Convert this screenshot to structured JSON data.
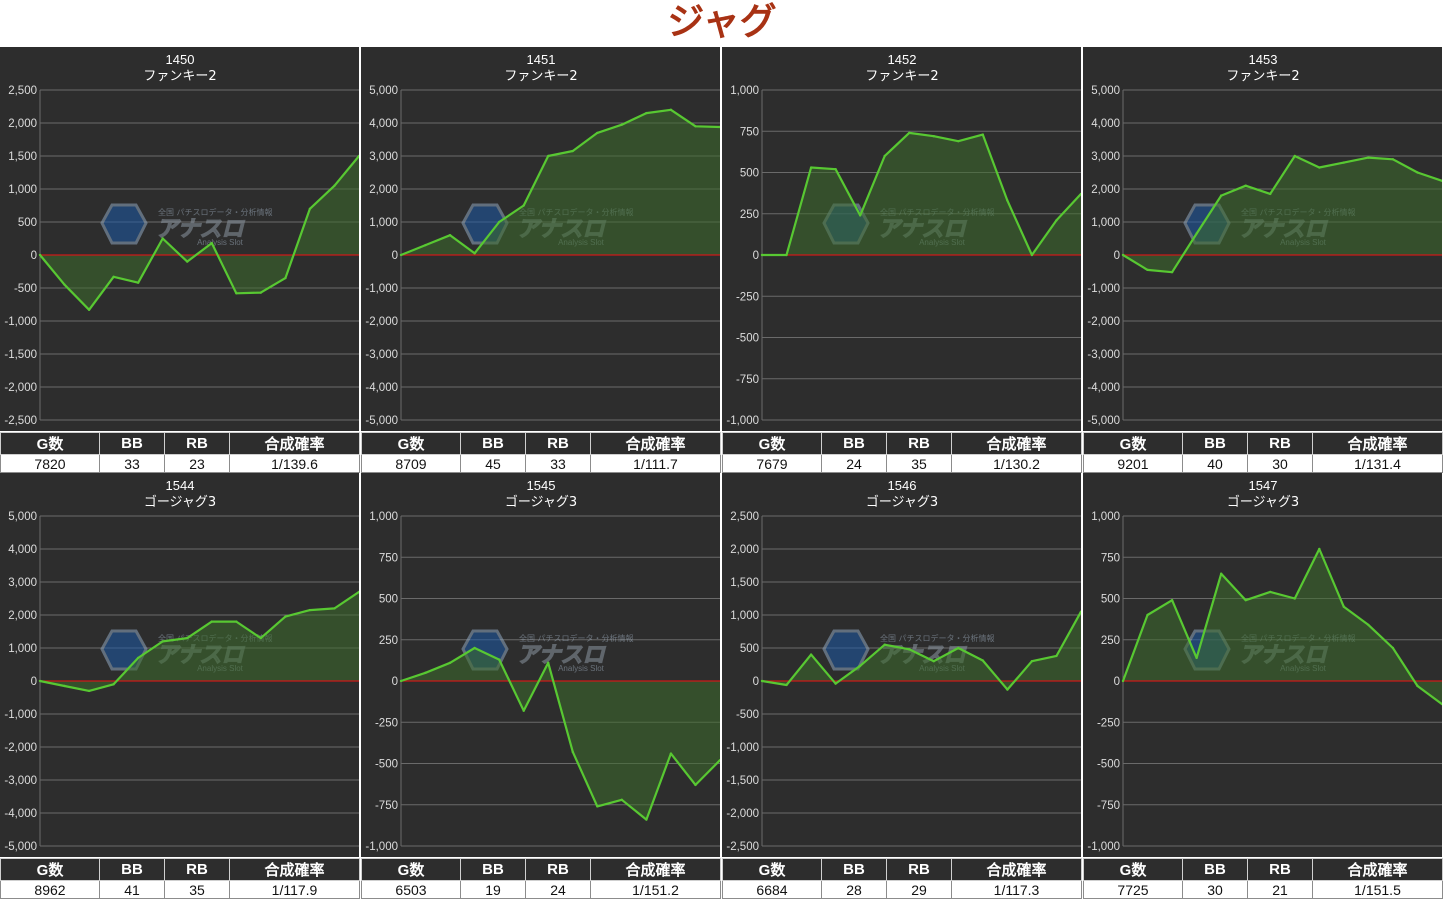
{
  "page": {
    "title": "ジャグ"
  },
  "table_headers": [
    "G数",
    "BB",
    "RB",
    "合成確率"
  ],
  "watermark": {
    "icon": "analysis-slot-logo",
    "subtext": "全国 パチスロデータ・分析情報",
    "logo": "アナスロ",
    "tagline": "Analysis Slot"
  },
  "colors": {
    "page_title": "#a83214",
    "panel_bg": "#2d2d2d",
    "line": "#58c832",
    "area": "#3d6b2c",
    "zero_line": "#cc1a1a",
    "grid": "#6a6a6a"
  },
  "panels": [
    {
      "machine": "1450",
      "model": "ファンキー2",
      "stats": {
        "games": "7820",
        "bb": "33",
        "rb": "23",
        "rate": "1/139.6"
      }
    },
    {
      "machine": "1451",
      "model": "ファンキー2",
      "stats": {
        "games": "8709",
        "bb": "45",
        "rb": "33",
        "rate": "1/111.7"
      }
    },
    {
      "machine": "1452",
      "model": "ファンキー2",
      "stats": {
        "games": "7679",
        "bb": "24",
        "rb": "35",
        "rate": "1/130.2"
      }
    },
    {
      "machine": "1453",
      "model": "ファンキー2",
      "stats": {
        "games": "9201",
        "bb": "40",
        "rb": "30",
        "rate": "1/131.4"
      }
    },
    {
      "machine": "1544",
      "model": "ゴージャグ3",
      "stats": {
        "games": "8962",
        "bb": "41",
        "rb": "35",
        "rate": "1/117.9"
      }
    },
    {
      "machine": "1545",
      "model": "ゴージャグ3",
      "stats": {
        "games": "6503",
        "bb": "19",
        "rb": "24",
        "rate": "1/151.2"
      }
    },
    {
      "machine": "1546",
      "model": "ゴージャグ3",
      "stats": {
        "games": "6684",
        "bb": "28",
        "rb": "29",
        "rate": "1/117.3"
      }
    },
    {
      "machine": "1547",
      "model": "ゴージャグ3",
      "stats": {
        "games": "7725",
        "bb": "30",
        "rb": "21",
        "rate": "1/151.5"
      }
    }
  ],
  "chart_data": [
    {
      "type": "area",
      "title": "1450",
      "subtitle": "ファンキー2",
      "ylim": [
        -2500,
        2500
      ],
      "yticks": [
        "2,500",
        "2,000",
        "1,500",
        "1,000",
        "500",
        "0",
        "-500",
        "-1,000",
        "-1,500",
        "-2,000",
        "-2,500"
      ],
      "values": [
        0,
        -450,
        -830,
        -330,
        -420,
        250,
        -100,
        180,
        -580,
        -570,
        -350,
        700,
        1050,
        1500
      ]
    },
    {
      "type": "area",
      "title": "1451",
      "subtitle": "ファンキー2",
      "ylim": [
        -5000,
        5000
      ],
      "yticks": [
        "5,000",
        "4,000",
        "3,000",
        "2,000",
        "1,000",
        "0",
        "-1,000",
        "-2,000",
        "-3,000",
        "-4,000",
        "-5,000"
      ],
      "values": [
        0,
        300,
        600,
        50,
        1000,
        1500,
        3000,
        3150,
        3700,
        3950,
        4300,
        4400,
        3900,
        3880
      ]
    },
    {
      "type": "area",
      "title": "1452",
      "subtitle": "ファンキー2",
      "ylim": [
        -1000,
        1000
      ],
      "yticks": [
        "1,000",
        "750",
        "500",
        "250",
        "0",
        "-250",
        "-500",
        "-750",
        "-1,000"
      ],
      "values": [
        0,
        0,
        530,
        520,
        240,
        600,
        740,
        720,
        690,
        730,
        330,
        0,
        210,
        370
      ]
    },
    {
      "type": "area",
      "title": "1453",
      "subtitle": "ファンキー2",
      "ylim": [
        -5000,
        5000
      ],
      "yticks": [
        "5,000",
        "4,000",
        "3,000",
        "2,000",
        "1,000",
        "0",
        "-1,000",
        "-2,000",
        "-3,000",
        "-4,000",
        "-5,000"
      ],
      "values": [
        0,
        -450,
        -520,
        650,
        1800,
        2100,
        1850,
        3000,
        2650,
        2800,
        2950,
        2900,
        2500,
        2250
      ]
    },
    {
      "type": "area",
      "title": "1544",
      "subtitle": "ゴージャグ3",
      "ylim": [
        -5000,
        5000
      ],
      "yticks": [
        "5,000",
        "4,000",
        "3,000",
        "2,000",
        "1,000",
        "0",
        "-1,000",
        "-2,000",
        "-3,000",
        "-4,000",
        "-5,000"
      ],
      "values": [
        0,
        -150,
        -300,
        -100,
        700,
        1200,
        1300,
        1800,
        1800,
        1300,
        1950,
        2150,
        2200,
        2700
      ]
    },
    {
      "type": "area",
      "title": "1545",
      "subtitle": "ゴージャグ3",
      "ylim": [
        -1000,
        1000
      ],
      "yticks": [
        "1,000",
        "750",
        "500",
        "250",
        "0",
        "-250",
        "-500",
        "-750",
        "-1,000"
      ],
      "values": [
        0,
        50,
        110,
        200,
        130,
        -180,
        110,
        -430,
        -760,
        -720,
        -840,
        -440,
        -630,
        -480
      ]
    },
    {
      "type": "area",
      "title": "1546",
      "subtitle": "ゴージャグ3",
      "ylim": [
        -2500,
        2500
      ],
      "yticks": [
        "2,500",
        "2,000",
        "1,500",
        "1,000",
        "500",
        "0",
        "-500",
        "-1,000",
        "-1,500",
        "-2,000",
        "-2,500"
      ],
      "values": [
        0,
        -60,
        400,
        -40,
        230,
        550,
        480,
        300,
        500,
        310,
        -130,
        300,
        380,
        1050
      ]
    },
    {
      "type": "area",
      "title": "1547",
      "subtitle": "ゴージャグ3",
      "ylim": [
        -1000,
        1000
      ],
      "yticks": [
        "1,000",
        "750",
        "500",
        "250",
        "0",
        "-250",
        "-500",
        "-750",
        "-1,000"
      ],
      "values": [
        0,
        400,
        490,
        140,
        650,
        490,
        540,
        500,
        800,
        450,
        340,
        200,
        -30,
        -140
      ]
    }
  ]
}
